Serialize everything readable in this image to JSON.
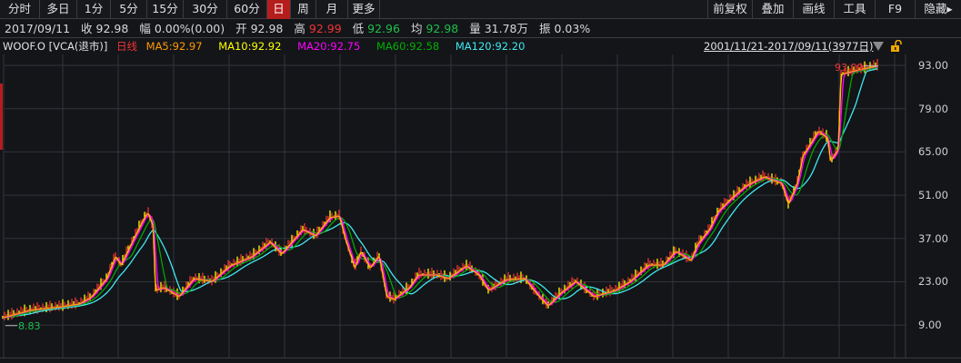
{
  "toolbar": {
    "periods": [
      "分时",
      "多日",
      "1分",
      "5分",
      "15分",
      "30分",
      "60分",
      "日",
      "周",
      "月",
      "更多"
    ],
    "active_period": "日",
    "right_tools": [
      "前复权",
      "叠加",
      "画线",
      "工具",
      "F9",
      "隐藏▸"
    ]
  },
  "info": {
    "date": "2017/09/11",
    "close_label": "收",
    "close": "92.98",
    "change_label": "幅",
    "change": "0.00%(0.00)",
    "open_label": "开",
    "open": "92.98",
    "high_label": "高",
    "high": "92.99",
    "low_label": "低",
    "low": "92.96",
    "avg_label": "均",
    "avg": "92.98",
    "volume_label": "量",
    "volume": "31.78万",
    "amplitude_label": "振",
    "amplitude": "0.03%"
  },
  "legend": {
    "symbol": "WOOF.O  [VCA(退市)]",
    "period": "日线",
    "ma5": "MA5:92.97",
    "ma10": "MA10:92.92",
    "ma20": "MA20:92.75",
    "ma60": "MA60:92.58",
    "ma120": "MA120:92.20",
    "range": "2001/11/21-2017/09/11(3977日)"
  },
  "colors": {
    "up": "#f03434",
    "down": "#1fbf4a",
    "active_tab": "#b51d1d",
    "ma5": "#ff9900",
    "ma10": "#ffff00",
    "ma20": "#ff00ff",
    "ma60": "#00b000",
    "ma120": "#40e8f0",
    "grid": "#33353a"
  },
  "chart_data": {
    "type": "line",
    "ylim": [
      3.2,
      98
    ],
    "y_ticks": [
      "93.00",
      "79.00",
      "65.00",
      "51.00",
      "37.00",
      "23.00",
      "9.00"
    ],
    "y_tick_values": [
      93,
      79,
      65,
      51,
      37,
      23,
      9
    ],
    "grid": true,
    "low_marker": "8.83",
    "high_marker": "93.09",
    "series": [
      {
        "name": "close",
        "x": [
          2001.9,
          2002.39,
          2002.95,
          2003.28,
          2003.5,
          2003.78,
          2003.94,
          2004.04,
          2004.27,
          2004.48,
          2004.53,
          2004.62,
          2004.66,
          2004.81,
          2005.09,
          2005.36,
          2005.69,
          2006.01,
          2006.41,
          2006.74,
          2006.95,
          2007.33,
          2007.56,
          2007.82,
          2007.99,
          2008.1,
          2008.27,
          2008.38,
          2008.55,
          2008.71,
          2008.85,
          2008.98,
          2009.26,
          2009.42,
          2009.75,
          2009.96,
          2010.29,
          2010.52,
          2010.69,
          2011.02,
          2011.35,
          2011.61,
          2011.77,
          2012.0,
          2012.27,
          2012.6,
          2012.99,
          2013.26,
          2013.59,
          2013.86,
          2014.08,
          2014.36,
          2014.47,
          2014.69,
          2014.85,
          2015.07,
          2015.35,
          2015.68,
          2016.0,
          2016.12,
          2016.28,
          2016.38,
          2016.66,
          2016.83,
          2016.88,
          2017.02,
          2017.07,
          2017.32,
          2017.7
        ],
        "y": [
          11.4,
          13.75,
          14.9,
          15.8,
          18.0,
          24.0,
          31.1,
          28.4,
          36.9,
          44.3,
          45.2,
          40.8,
          20.2,
          21.1,
          18.2,
          24.0,
          23.1,
          28.1,
          31.1,
          35.8,
          32.0,
          39.9,
          37.8,
          43.7,
          44.3,
          36.9,
          27.5,
          32.8,
          27.5,
          31.4,
          18.2,
          17.3,
          21.1,
          25.2,
          25.2,
          24.0,
          28.1,
          25.2,
          20.2,
          23.7,
          24.0,
          18.2,
          15.2,
          19.3,
          23.1,
          18.2,
          20.2,
          23.1,
          28.4,
          28.4,
          32.8,
          29.9,
          34.9,
          39.9,
          45.7,
          49.6,
          54.0,
          56.9,
          54.8,
          48.1,
          54.8,
          63.6,
          71.6,
          69.5,
          61.9,
          65.7,
          90.1,
          91.2,
          92.7
        ]
      }
    ]
  }
}
